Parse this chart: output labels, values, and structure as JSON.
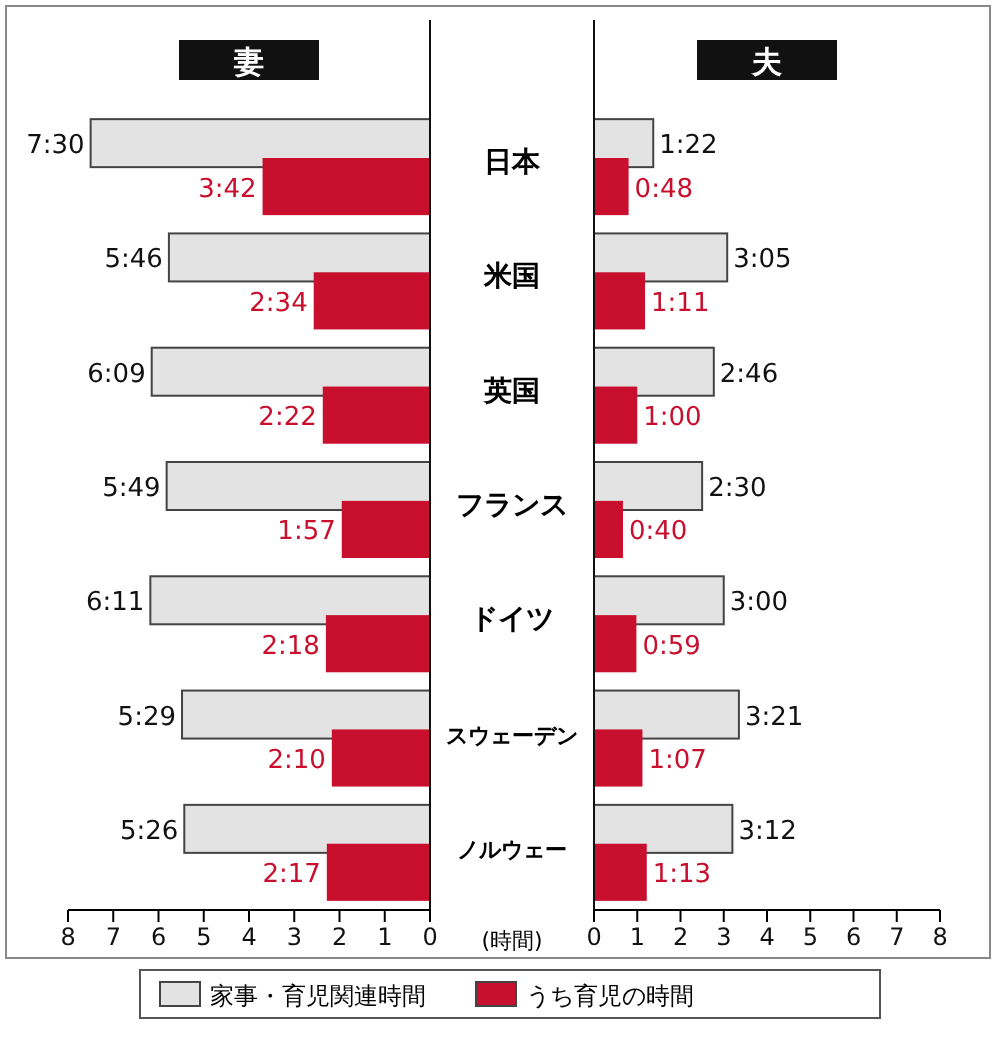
{
  "chart_data": [
    {
      "type": "bar",
      "orientation": "horizontal",
      "title": "妻",
      "xlabel": "(時間)",
      "categories": [
        "日本",
        "米国",
        "英国",
        "フランス",
        "ドイツ",
        "スウェーデン",
        "ノルウェー"
      ],
      "series": [
        {
          "name": "家事・育児関連時間",
          "color": "#e3e3e3",
          "values": [
            7.5,
            5.77,
            6.15,
            5.82,
            6.18,
            5.48,
            5.43
          ],
          "value_labels": [
            "7:30",
            "5:46",
            "6:09",
            "5:49",
            "6:11",
            "5:29",
            "5:26"
          ]
        },
        {
          "name": "うち育児の時間",
          "color": "#c8102e",
          "values": [
            3.7,
            2.57,
            2.37,
            1.95,
            2.3,
            2.17,
            2.28
          ],
          "value_labels": [
            "3:42",
            "2:34",
            "2:22",
            "1:57",
            "2:18",
            "2:10",
            "2:17"
          ]
        }
      ],
      "xlim": [
        8,
        0
      ],
      "xticks": [
        8,
        7,
        6,
        5,
        4,
        3,
        2,
        1,
        0
      ],
      "legend": "bottom"
    },
    {
      "type": "bar",
      "orientation": "horizontal",
      "title": "夫",
      "tick_labels": "x",
      "series": [
        {
          "color": "#e3e3e3",
          "values": [
            1.37,
            3.08,
            2.77,
            2.5,
            3.0,
            3.35,
            3.2
          ],
          "value_labels": [
            "1:22",
            "3:05",
            "2:46",
            "2:30",
            "3:00",
            "3:21",
            "3:12"
          ]
        },
        {
          "color": "#c8102e",
          "values": [
            0.8,
            1.18,
            1.0,
            0.67,
            0.98,
            1.12,
            1.22
          ],
          "value_labels": [
            "0:48",
            "1:11",
            "1:00",
            "0:40",
            "0:59",
            "1:07",
            "1:13"
          ]
        }
      ],
      "xlim": [
        0,
        8
      ],
      "xticks": [
        0,
        1,
        2,
        3,
        4,
        5,
        6,
        7,
        8
      ]
    }
  ]
}
